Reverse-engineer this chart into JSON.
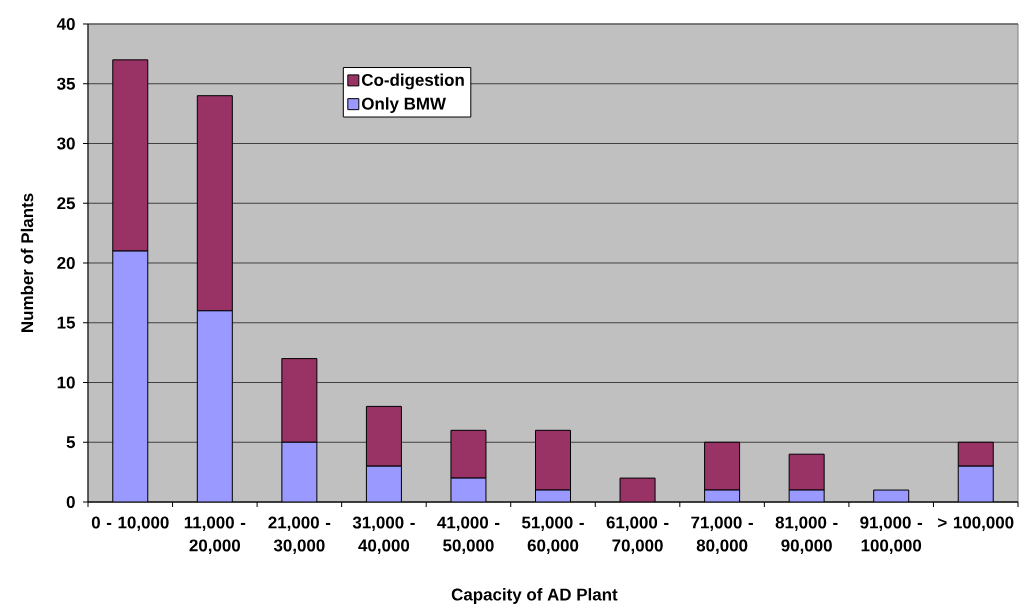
{
  "chart_data": {
    "type": "bar",
    "stacked": true,
    "xlabel": "Capacity of AD Plant",
    "ylabel": "Number of Plants",
    "categories": [
      "0 - 10,000",
      "11,000 - 20,000",
      "21,000 - 30,000",
      "31,000 - 40,000",
      "41,000 - 50,000",
      "51,000 - 60,000",
      "61,000 - 70,000",
      "71,000 - 80,000",
      "81,000 - 90,000",
      "91,000 - 100,000",
      "> 100,000"
    ],
    "series": [
      {
        "name": "Only BMW",
        "color": "#9999ff",
        "values": [
          21,
          16,
          5,
          3,
          2,
          1,
          0,
          1,
          1,
          1,
          3
        ]
      },
      {
        "name": "Co-digestion",
        "color": "#993366",
        "values": [
          16,
          18,
          7,
          5,
          4,
          5,
          2,
          4,
          3,
          0,
          2
        ]
      }
    ],
    "ylim": [
      0,
      40
    ],
    "yticks": [
      0,
      5,
      10,
      15,
      20,
      25,
      30,
      35,
      40
    ],
    "grid": "y",
    "legend": "top left"
  }
}
